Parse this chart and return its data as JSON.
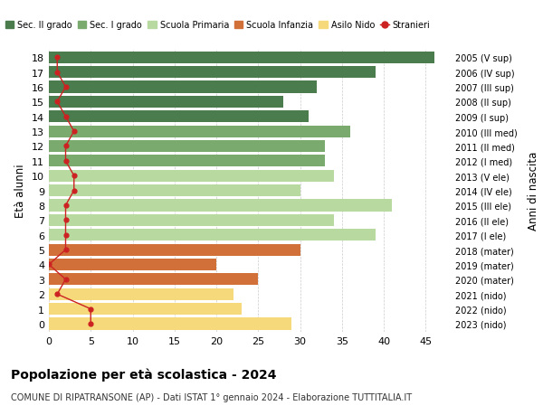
{
  "ages": [
    18,
    17,
    16,
    15,
    14,
    13,
    12,
    11,
    10,
    9,
    8,
    7,
    6,
    5,
    4,
    3,
    2,
    1,
    0
  ],
  "values": [
    46,
    39,
    32,
    28,
    31,
    36,
    33,
    33,
    34,
    30,
    41,
    34,
    39,
    30,
    20,
    25,
    22,
    23,
    29
  ],
  "stranieri": [
    1,
    1,
    2,
    1,
    2,
    3,
    2,
    2,
    3,
    3,
    2,
    2,
    2,
    2,
    0,
    2,
    1,
    5,
    5
  ],
  "right_labels": [
    "2005 (V sup)",
    "2006 (IV sup)",
    "2007 (III sup)",
    "2008 (II sup)",
    "2009 (I sup)",
    "2010 (III med)",
    "2011 (II med)",
    "2012 (I med)",
    "2013 (V ele)",
    "2014 (IV ele)",
    "2015 (III ele)",
    "2016 (II ele)",
    "2017 (I ele)",
    "2018 (mater)",
    "2019 (mater)",
    "2020 (mater)",
    "2021 (nido)",
    "2022 (nido)",
    "2023 (nido)"
  ],
  "categories": {
    "Sec. II grado": {
      "ages": [
        18,
        17,
        16,
        15,
        14
      ],
      "color": "#4a7c4e"
    },
    "Sec. I grado": {
      "ages": [
        13,
        12,
        11
      ],
      "color": "#7aaa6e"
    },
    "Scuola Primaria": {
      "ages": [
        10,
        9,
        8,
        7,
        6
      ],
      "color": "#b8d9a0"
    },
    "Scuola Infanzia": {
      "ages": [
        5,
        4,
        3
      ],
      "color": "#d2703a"
    },
    "Asilo Nido": {
      "ages": [
        2,
        1,
        0
      ],
      "color": "#f5d97a"
    }
  },
  "stranieri_color": "#cc2222",
  "title": "Popolazione per età scolastica - 2024",
  "subtitle": "COMUNE DI RIPATRANSONE (AP) - Dati ISTAT 1° gennaio 2024 - Elaborazione TUTTITALIA.IT",
  "ylabel": "Età alunni",
  "right_ylabel": "Anni di nascita",
  "xlim": [
    0,
    48
  ],
  "xticks": [
    0,
    5,
    10,
    15,
    20,
    25,
    30,
    35,
    40,
    45
  ],
  "bg_color": "#ffffff",
  "grid_color": "#cccccc",
  "bar_height": 0.8,
  "legend_order": [
    "Sec. II grado",
    "Sec. I grado",
    "Scuola Primaria",
    "Scuola Infanzia",
    "Asilo Nido",
    "Stranieri"
  ],
  "legend_colors": {
    "Sec. II grado": "#4a7c4e",
    "Sec. I grado": "#7aaa6e",
    "Scuola Primaria": "#b8d9a0",
    "Scuola Infanzia": "#d2703a",
    "Asilo Nido": "#f5d97a",
    "Stranieri": "#cc2222"
  }
}
